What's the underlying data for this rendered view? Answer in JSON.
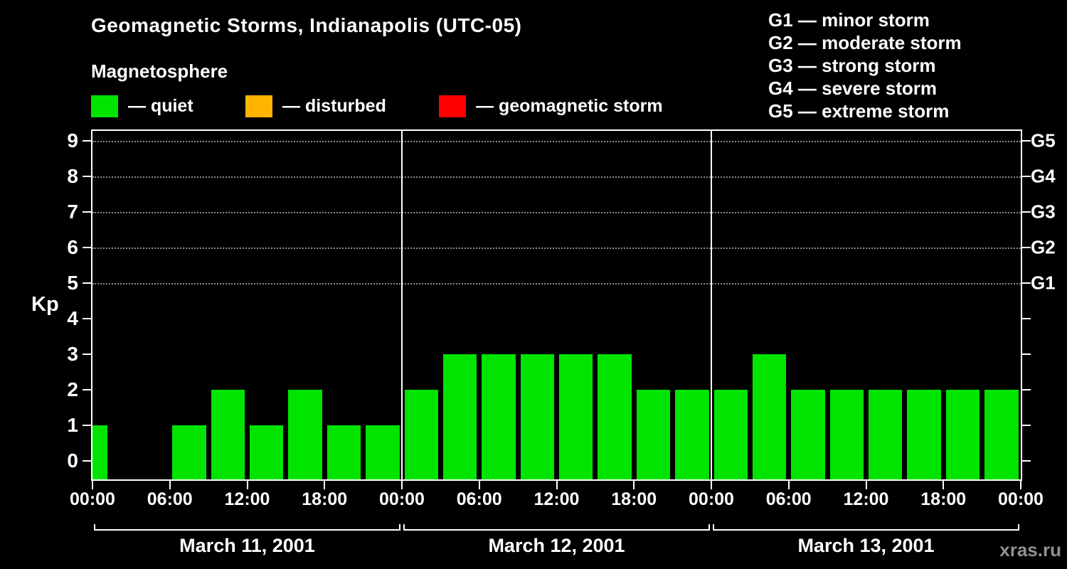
{
  "title": "Geomagnetic Storms, Indianapolis (UTC-05)",
  "subtitle": "Magnetosphere",
  "watermark": "xras.ru",
  "kp_legend": [
    {
      "label": "— quiet",
      "color": "#00e400"
    },
    {
      "label": "— disturbed",
      "color": "#ffb400"
    },
    {
      "label": "— geomagnetic storm",
      "color": "#ff0000"
    }
  ],
  "g_legend": [
    "G1 — minor storm",
    "G2 — moderate storm",
    "G3 — strong storm",
    "G4 — severe storm",
    "G5 — extreme storm"
  ],
  "chart_data": {
    "type": "bar",
    "title": "Geomagnetic Storms, Indianapolis (UTC-05)",
    "ylabel": "Kp",
    "ylim": [
      0,
      9.5
    ],
    "y_ticks": [
      0,
      1,
      2,
      3,
      4,
      5,
      6,
      7,
      8,
      9
    ],
    "gridlines": [
      5,
      6,
      7,
      8,
      9
    ],
    "grid_style": "dotted",
    "legend_position": "top",
    "right_axis": [
      {
        "value": 5,
        "label": "G1"
      },
      {
        "value": 6,
        "label": "G2"
      },
      {
        "value": 7,
        "label": "G3"
      },
      {
        "value": 8,
        "label": "G4"
      },
      {
        "value": 9,
        "label": "G5"
      }
    ],
    "time_ticks": [
      "00:00",
      "06:00",
      "12:00",
      "18:00"
    ],
    "end_time_tick": "00:00",
    "bar_interval_hours": 3,
    "days": [
      {
        "date": "March 11, 2001",
        "kp_values": [
          1,
          0,
          1,
          2,
          1,
          2,
          1,
          1
        ]
      },
      {
        "date": "March 12, 2001",
        "kp_values": [
          2,
          3,
          3,
          3,
          3,
          3,
          2,
          2
        ]
      },
      {
        "date": "March 13, 2001",
        "kp_values": [
          2,
          3,
          2,
          2,
          2,
          2,
          2,
          2
        ]
      }
    ],
    "color_rules": {
      "quiet": {
        "max_kp": 3,
        "color": "#00e400"
      },
      "disturbed": {
        "kp": 4,
        "color": "#ffb400"
      },
      "storm": {
        "min_kp": 5,
        "color": "#ff0000"
      }
    }
  }
}
